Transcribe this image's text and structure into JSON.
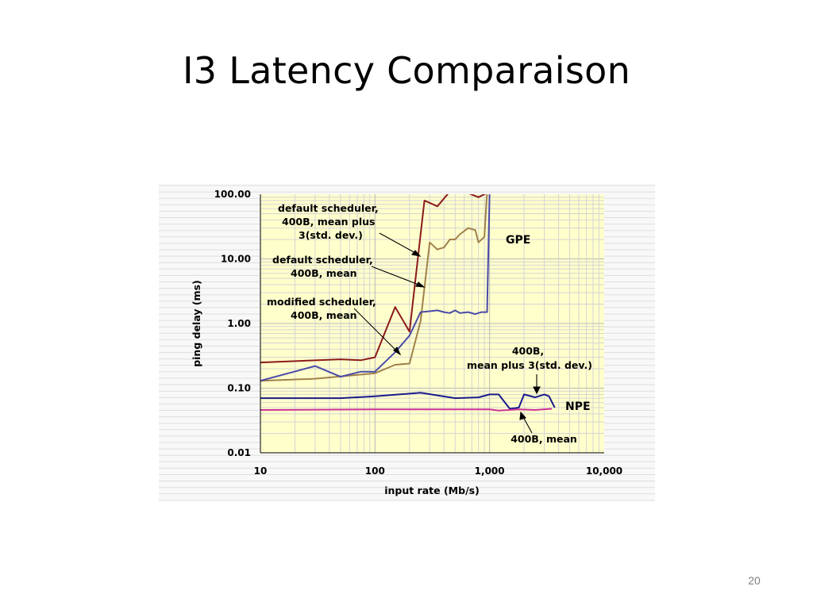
{
  "slide": {
    "title": "I3 Latency Comparaison",
    "page_number": "20"
  },
  "chart_data": {
    "type": "line",
    "xlabel": "input rate (Mb/s)",
    "ylabel": "ping delay (ms)",
    "x_scale": "log",
    "y_scale": "log",
    "xlim": [
      10,
      10000
    ],
    "ylim": [
      0.01,
      100
    ],
    "x_ticks": [
      {
        "value": 10,
        "label": "10"
      },
      {
        "value": 100,
        "label": "100"
      },
      {
        "value": 1000,
        "label": "1,000"
      },
      {
        "value": 10000,
        "label": "10,000"
      }
    ],
    "y_ticks": [
      {
        "value": 100,
        "label": "100.00"
      },
      {
        "value": 10,
        "label": "10.00"
      },
      {
        "value": 1,
        "label": "1.00"
      },
      {
        "value": 0.1,
        "label": "0.10"
      },
      {
        "value": 0.01,
        "label": "0.01"
      }
    ],
    "grid": true,
    "background": "#ffffcc",
    "region_labels": [
      "GPE",
      "NPE"
    ],
    "series": [
      {
        "color": "#8b1a1a",
        "points": [
          [
            10,
            0.25
          ],
          [
            50,
            0.28
          ],
          [
            75,
            0.27
          ],
          [
            100,
            0.3
          ],
          [
            150,
            1.8
          ],
          [
            200,
            0.75
          ],
          [
            270,
            80
          ],
          [
            350,
            65
          ],
          [
            450,
            110
          ],
          [
            600,
            110
          ],
          [
            800,
            90
          ],
          [
            1000,
            110
          ]
        ]
      },
      {
        "color": "#a0814a",
        "points": [
          [
            10,
            0.13
          ],
          [
            30,
            0.14
          ],
          [
            100,
            0.17
          ],
          [
            150,
            0.23
          ],
          [
            200,
            0.24
          ],
          [
            250,
            1.1
          ],
          [
            300,
            18
          ],
          [
            350,
            14
          ],
          [
            400,
            15
          ],
          [
            450,
            20
          ],
          [
            500,
            20
          ],
          [
            550,
            24
          ],
          [
            650,
            30
          ],
          [
            750,
            28
          ],
          [
            800,
            18
          ],
          [
            900,
            22
          ],
          [
            950,
            110
          ]
        ]
      },
      {
        "color": "#4a4aa8",
        "points": [
          [
            10,
            0.13
          ],
          [
            30,
            0.22
          ],
          [
            50,
            0.15
          ],
          [
            75,
            0.18
          ],
          [
            100,
            0.18
          ],
          [
            150,
            0.36
          ],
          [
            200,
            0.65
          ],
          [
            250,
            1.5
          ],
          [
            300,
            1.55
          ],
          [
            350,
            1.6
          ],
          [
            400,
            1.5
          ],
          [
            450,
            1.45
          ],
          [
            500,
            1.6
          ],
          [
            550,
            1.45
          ],
          [
            650,
            1.5
          ],
          [
            750,
            1.4
          ],
          [
            850,
            1.5
          ],
          [
            950,
            1.5
          ],
          [
            1000,
            110
          ]
        ]
      },
      {
        "color": "#1a1a8c",
        "points": [
          [
            10,
            0.07
          ],
          [
            50,
            0.07
          ],
          [
            100,
            0.075
          ],
          [
            250,
            0.085
          ],
          [
            500,
            0.07
          ],
          [
            800,
            0.072
          ],
          [
            1000,
            0.08
          ],
          [
            1200,
            0.08
          ],
          [
            1500,
            0.048
          ],
          [
            1800,
            0.05
          ],
          [
            2000,
            0.08
          ],
          [
            2500,
            0.072
          ],
          [
            3000,
            0.08
          ],
          [
            3300,
            0.075
          ],
          [
            3700,
            0.05
          ]
        ]
      },
      {
        "color": "#cc3399",
        "points": [
          [
            10,
            0.046
          ],
          [
            100,
            0.047
          ],
          [
            500,
            0.047
          ],
          [
            1000,
            0.047
          ],
          [
            1200,
            0.045
          ],
          [
            1800,
            0.047
          ],
          [
            2500,
            0.046
          ],
          [
            3500,
            0.048
          ]
        ]
      }
    ],
    "annotations": [
      {
        "lines": [
          "default scheduler,",
          "400B, mean plus",
          "3(std. dev.)"
        ]
      },
      {
        "lines": [
          "default scheduler,",
          "400B, mean"
        ]
      },
      {
        "lines": [
          "modified scheduler,",
          "400B, mean"
        ]
      },
      {
        "lines": [
          "400B,",
          "mean plus 3(std. dev.)"
        ]
      },
      {
        "lines": [
          "400B, mean"
        ]
      }
    ]
  }
}
